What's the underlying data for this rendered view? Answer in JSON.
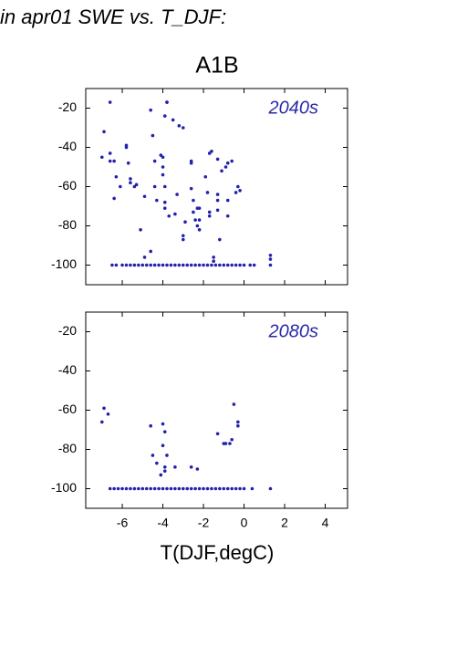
{
  "title": "in apr01 SWE vs. T_DJF:",
  "subtitle": "A1B",
  "xlabel": "T(DJF,degC)",
  "chart_data": [
    {
      "type": "scatter",
      "annotation": "2040s",
      "color": "#2222aa",
      "annotation_color": "#2a2aaa",
      "xlim": [
        -7.8,
        5.1
      ],
      "ylim": [
        -110,
        -10
      ],
      "xticks": [
        -6,
        -4,
        -2,
        0,
        2,
        4
      ],
      "yticks": [
        -100,
        -80,
        -60,
        -40,
        -20
      ],
      "show_xtick_labels": false,
      "x": [
        -6.6,
        -6.9,
        -6.6,
        -7.0,
        -6.6,
        -6.4,
        -5.8,
        -5.8,
        -5.7,
        -6.1,
        -6.4,
        -6.3,
        -5.6,
        -5.6,
        -5.4,
        -5.3,
        -4.9,
        -5.1,
        -4.9,
        -4.6,
        -4.5,
        -4.6,
        -4.4,
        -4.4,
        -4.3,
        -4.1,
        -4.0,
        -4.0,
        -4.0,
        -3.9,
        -3.8,
        -3.8,
        -3.9,
        -3.9,
        -3.9,
        -3.7,
        -3.5,
        -3.3,
        -3.4,
        -3.2,
        -3.0,
        -3.0,
        -3.0,
        -2.9,
        -2.6,
        -2.6,
        -2.6,
        -2.5,
        -2.5,
        -2.4,
        -2.3,
        -2.3,
        -2.2,
        -2.2,
        -2.2,
        -1.9,
        -1.8,
        -1.7,
        -1.6,
        -1.7,
        -1.7,
        -1.5,
        -1.5,
        -1.3,
        -1.3,
        -1.3,
        -1.3,
        -1.2,
        -1.1,
        -0.9,
        -0.8,
        -0.8,
        -0.8,
        -0.6,
        -0.4,
        -0.3,
        -0.2,
        1.3,
        1.3,
        1.3,
        -6.5,
        -6.3,
        -6.0,
        -5.8,
        -5.6,
        -5.4,
        -5.2,
        -5.0,
        -4.8,
        -4.6,
        -4.4,
        -4.2,
        -4.0,
        -3.8,
        -3.6,
        -3.4,
        -3.2,
        -3.0,
        -2.8,
        -2.6,
        -2.4,
        -2.2,
        -2.0,
        -1.8,
        -1.6,
        -1.4,
        -1.2,
        -1.0,
        -0.8,
        -0.6,
        -0.4,
        -0.2,
        0,
        0.3,
        0.5
      ],
      "y": [
        -17,
        -32,
        -43,
        -45,
        -47,
        -47,
        -39,
        -40,
        -48,
        -60,
        -66,
        -55,
        -56,
        -58,
        -60,
        -59,
        -65,
        -82,
        -96,
        -93,
        -34,
        -21,
        -47,
        -60,
        -67,
        -44,
        -45,
        -50,
        -54,
        -24,
        -17,
        -17,
        -60,
        -68,
        -71,
        -75,
        -26,
        -64,
        -74,
        -29,
        -30,
        -87,
        -85,
        -78,
        -48,
        -47,
        -61,
        -67,
        -73,
        -77,
        -80,
        -71,
        -71,
        -77,
        -82,
        -55,
        -63,
        -43,
        -42,
        -73,
        -75,
        -98,
        -96,
        -46,
        -64,
        -67,
        -72,
        -87,
        -52,
        -50,
        -48,
        -67,
        -75,
        -47,
        -63,
        -60,
        -62,
        -95,
        -97,
        -100,
        -100,
        -100,
        -100,
        -100,
        -100,
        -100,
        -100,
        -100,
        -100,
        -100,
        -100,
        -100,
        -100,
        -100,
        -100,
        -100,
        -100,
        -100,
        -100,
        -100,
        -100,
        -100,
        -100,
        -100,
        -100,
        -100,
        -100,
        -100,
        -100,
        -100,
        -100,
        -100,
        -100,
        -100,
        -100
      ]
    },
    {
      "type": "scatter",
      "annotation": "2080s",
      "color": "#2222aa",
      "annotation_color": "#2a2aaa",
      "xlim": [
        -7.8,
        5.1
      ],
      "ylim": [
        -110,
        -10
      ],
      "xticks": [
        -6,
        -4,
        -2,
        0,
        2,
        4
      ],
      "yticks": [
        -100,
        -80,
        -60,
        -40,
        -20
      ],
      "show_xtick_labels": true,
      "x": [
        -6.9,
        -7.0,
        -6.7,
        -4.6,
        -4.0,
        -3.9,
        -4.0,
        -3.8,
        -4.5,
        -4.3,
        -4.1,
        -3.9,
        -3.9,
        -3.4,
        -2.6,
        -2.3,
        -1.3,
        -1.0,
        -0.9,
        -0.7,
        -0.5,
        -0.3,
        -0.3,
        -0.6,
        -6.6,
        -6.4,
        -6.2,
        -6.0,
        -5.8,
        -5.6,
        -5.4,
        -5.2,
        -5.0,
        -4.8,
        -4.6,
        -4.4,
        -4.2,
        -4.0,
        -3.8,
        -3.6,
        -3.4,
        -3.2,
        -3.0,
        -2.8,
        -2.6,
        -2.4,
        -2.2,
        -2.0,
        -1.8,
        -1.6,
        -1.4,
        -1.2,
        -1.0,
        -0.8,
        -0.6,
        -0.4,
        -0.2,
        0,
        0.4,
        1.3
      ],
      "y": [
        -59,
        -66,
        -62,
        -68,
        -67,
        -71,
        -78,
        -83,
        -83,
        -87,
        -93,
        -89,
        -91,
        -89,
        -89,
        -90,
        -72,
        -77,
        -77,
        -77,
        -57,
        -66,
        -68,
        -75,
        -100,
        -100,
        -100,
        -100,
        -100,
        -100,
        -100,
        -100,
        -100,
        -100,
        -100,
        -100,
        -100,
        -100,
        -100,
        -100,
        -100,
        -100,
        -100,
        -100,
        -100,
        -100,
        -100,
        -100,
        -100,
        -100,
        -100,
        -100,
        -100,
        -100,
        -100,
        -100,
        -100,
        -100,
        -100,
        -100
      ]
    }
  ]
}
